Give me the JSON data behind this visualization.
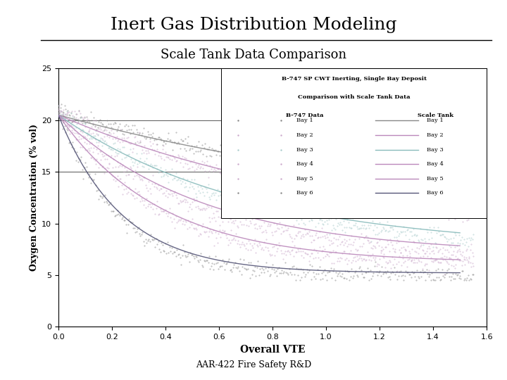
{
  "title": "Inert Gas Distribution Modeling",
  "subtitle": "Scale Tank Data Comparison",
  "inner_title_line1": "B-747 SP CWT Inerting, Single Bay Deposit",
  "inner_title_line2": "Comparison with Scale Tank Data",
  "xlabel": "Overall VTE",
  "ylabel": "Oxygen Concentration (% vol)",
  "footer": "AAR-422 Fire Safety R&D",
  "xlim": [
    0,
    1.6
  ],
  "ylim": [
    0,
    25
  ],
  "xticks": [
    0,
    0.2,
    0.4,
    0.6,
    0.8,
    1.0,
    1.2,
    1.4,
    1.6
  ],
  "yticks": [
    0,
    5,
    10,
    15,
    20,
    25
  ],
  "hlines": [
    20.0,
    15.0
  ],
  "b747_colors": [
    "#888888",
    "#ccaacc",
    "#aacccc",
    "#ccaacc",
    "#ccaacc",
    "#888888"
  ],
  "scale_colors": [
    "#888888",
    "#bb88bb",
    "#88bbbb",
    "#bb88bb",
    "#bb88bb",
    "#555577"
  ],
  "background_color": "#ffffff"
}
